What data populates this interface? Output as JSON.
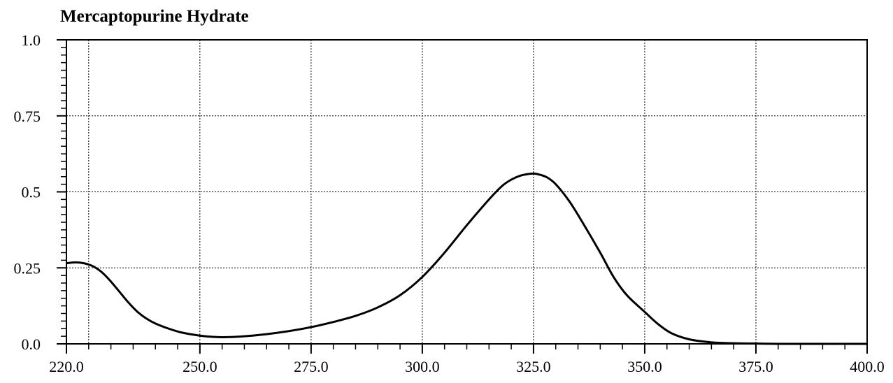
{
  "chart_data": {
    "type": "line",
    "title": "Mercaptopurine Hydrate",
    "xlabel": "",
    "ylabel": "",
    "xlim": [
      220.0,
      400.0
    ],
    "ylim": [
      0.0,
      1.0
    ],
    "x_ticks": [
      220.0,
      250.0,
      275.0,
      300.0,
      325.0,
      350.0,
      375.0,
      400.0
    ],
    "x_tick_labels": [
      "220.0",
      "250.0",
      "275.0",
      "300.0",
      "325.0",
      "350.0",
      "375.0",
      "400.0"
    ],
    "y_ticks": [
      0.0,
      0.25,
      0.5,
      0.75,
      1.0
    ],
    "y_tick_labels": [
      "0.0",
      "0.25",
      "0.5",
      "0.75",
      "1.0"
    ],
    "x_grid": [
      225.0,
      250.0,
      275.0,
      300.0,
      325.0,
      350.0,
      375.0
    ],
    "y_grid": [
      0.25,
      0.5,
      0.75
    ],
    "grid": true,
    "colors": {
      "line": "#000000",
      "grid": "#000000",
      "axis": "#000000"
    },
    "series": [
      {
        "x": [
          220,
          222,
          224,
          226,
          228,
          230,
          232,
          234,
          236,
          238,
          240,
          243,
          246,
          250,
          253,
          256,
          260,
          265,
          270,
          275,
          280,
          285,
          290,
          295,
          300,
          305,
          310,
          315,
          318,
          320,
          322,
          324,
          325,
          326,
          328,
          330,
          333,
          336,
          340,
          343,
          346,
          350,
          353,
          356,
          360,
          365,
          370,
          375,
          380,
          390,
          400
        ],
        "y": [
          0.265,
          0.268,
          0.265,
          0.255,
          0.235,
          0.205,
          0.17,
          0.135,
          0.105,
          0.083,
          0.067,
          0.05,
          0.037,
          0.027,
          0.023,
          0.022,
          0.025,
          0.032,
          0.042,
          0.055,
          0.072,
          0.092,
          0.12,
          0.16,
          0.22,
          0.3,
          0.39,
          0.475,
          0.52,
          0.54,
          0.553,
          0.559,
          0.56,
          0.558,
          0.548,
          0.525,
          0.47,
          0.4,
          0.3,
          0.22,
          0.16,
          0.105,
          0.065,
          0.035,
          0.015,
          0.005,
          0.002,
          0.001,
          0.0,
          0.0,
          0.0
        ]
      }
    ]
  }
}
